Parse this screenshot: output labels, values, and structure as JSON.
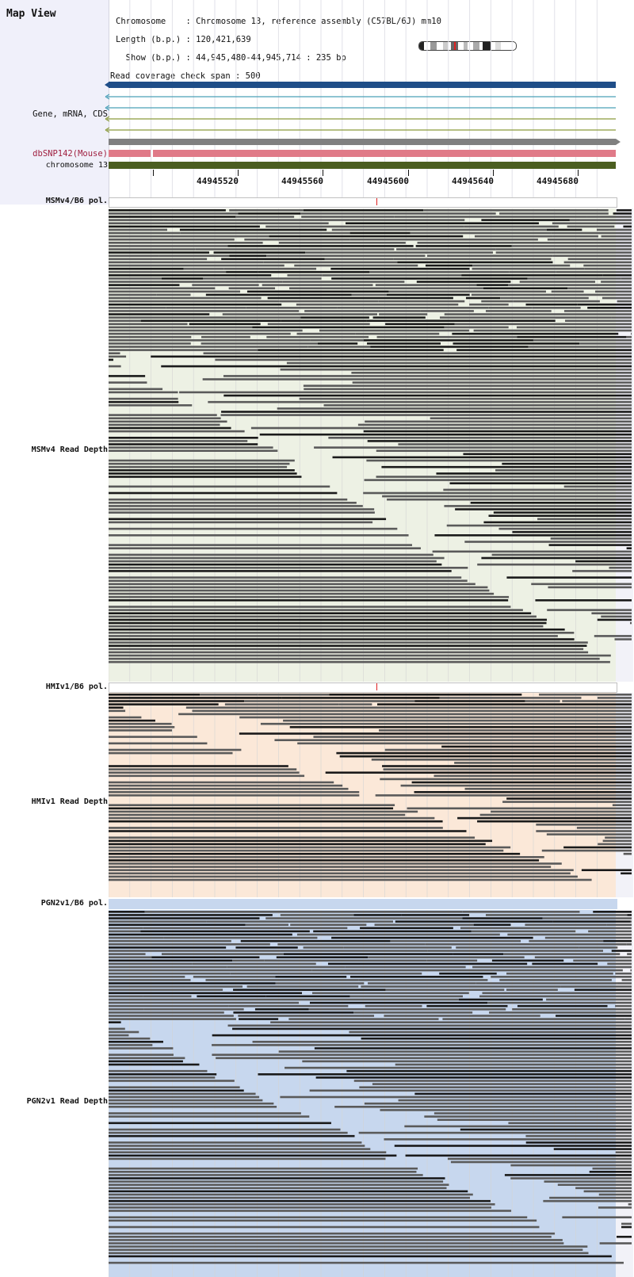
{
  "header": {
    "title": "Map View",
    "chromosome_line": "Chromosome    : Chromosome 13, reference assembly (C57BL/6J) mm10",
    "length_line": "Length (b.p.) : 120,421,639",
    "show_line": "  Show (b.p.) : 44,945,480-44,945,714 : 235 bp",
    "coverage_line": "Read coverage check span : 500"
  },
  "labels": {
    "gene": "Gene, mRNA, CDS",
    "dbsnp": "dbSNP142(Mouse)",
    "chromosome": "chromosome 13",
    "msm_pol": "MSMv4/B6 pol.",
    "msm_depth": "MSMv4 Read Depth",
    "hmi_pol": "HMIv1/B6 pol.",
    "hmi_depth": "HMIv1 Read Depth",
    "pgn_pol": "PGN2v1/B6 pol.",
    "pgn_depth": "PGN2v1 Read Depth"
  },
  "axis": {
    "ticks": [
      "44945520",
      "44945560",
      "44945600",
      "44945640",
      "44945680"
    ]
  },
  "colors": {
    "gene_main": "#1f4e88",
    "mrna_teal": "#4aa0b8",
    "cds_olive": "#8a9a3a",
    "grey_track": "#808080",
    "snp_pink": "#e07a88",
    "chromosome_green": "#4b5e20",
    "msm_bg": "#edf1e4",
    "hmi_bg": "#fbe8d8",
    "pgn_bg": "#c7d7ee",
    "read": "#5a5a5a"
  },
  "icons": {
    "ideogram": "chromosome-ideogram-icon",
    "arrow": "arrow-left-icon"
  }
}
